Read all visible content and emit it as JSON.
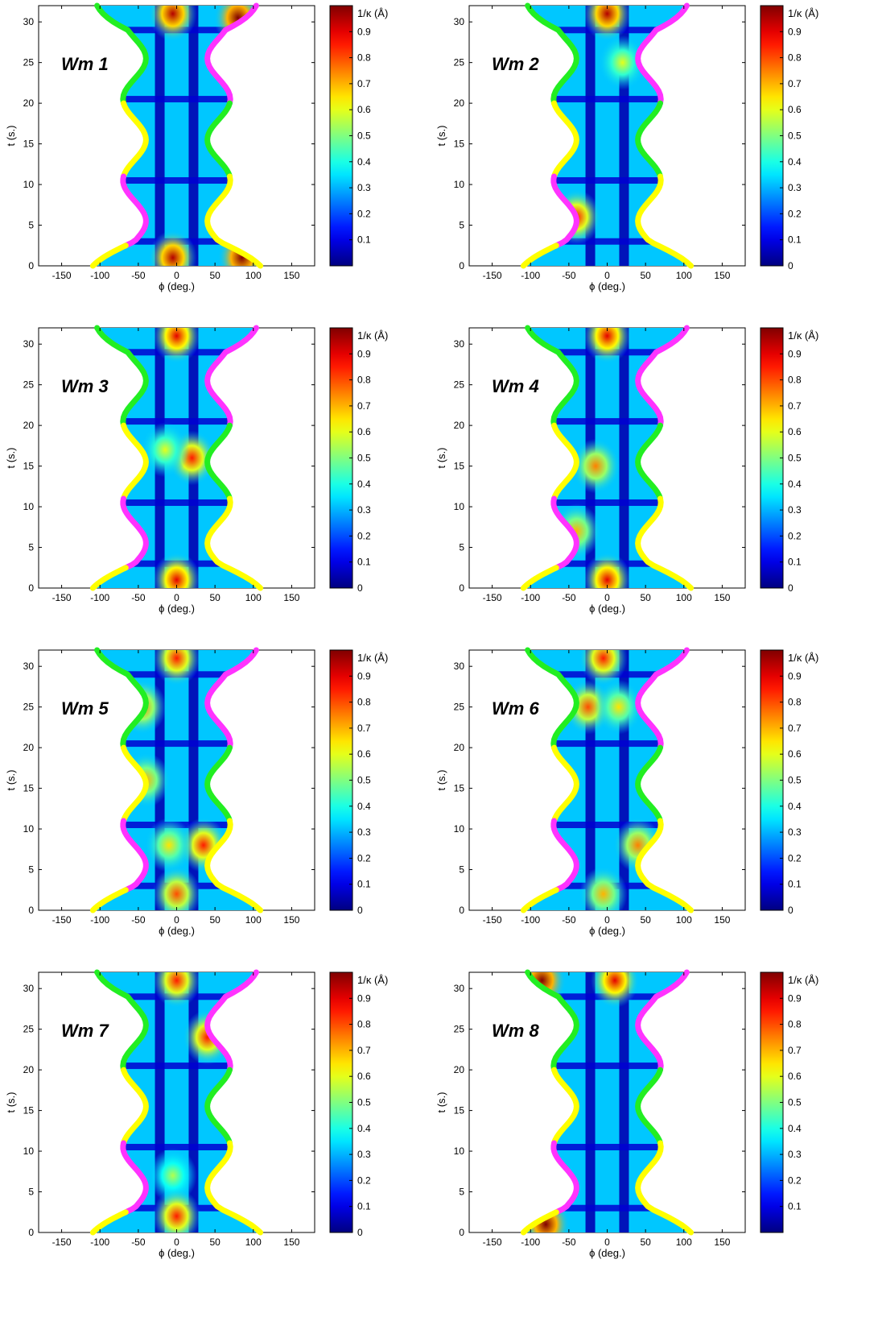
{
  "chart_data": [
    {
      "type": "heatmap",
      "panel_label": "Wm 1",
      "xlabel": "ϕ (deg.)",
      "ylabel": "t (s.)",
      "xlim": [
        -180,
        180
      ],
      "ylim": [
        0,
        32
      ],
      "xticks": [
        "-150",
        "-100",
        "-50",
        "0",
        "50",
        "100",
        "150"
      ],
      "yticks": [
        "0",
        "5",
        "10",
        "15",
        "20",
        "25",
        "30"
      ],
      "colorbar_label": "1/κ (Å)",
      "colorbar_range": [
        0,
        1
      ],
      "colorbar_ticks": [
        "0.1",
        "0.2",
        "0.3",
        "0.4",
        "0.5",
        "0.6",
        "0.7",
        "0.8",
        "0.9"
      ],
      "hotspots": [
        {
          "x": -5,
          "y": 31,
          "v": 0.95
        },
        {
          "x": 80,
          "y": 30.5,
          "v": 1.0
        },
        {
          "x": -5,
          "y": 1,
          "v": 0.95
        },
        {
          "x": 85,
          "y": 1,
          "v": 1.0
        }
      ]
    },
    {
      "type": "heatmap",
      "panel_label": "Wm 2",
      "xlabel": "ϕ (deg.)",
      "ylabel": "t (s.)",
      "xlim": [
        -180,
        180
      ],
      "ylim": [
        0,
        32
      ],
      "xticks": [
        "-150",
        "-100",
        "-50",
        "0",
        "50",
        "100",
        "150"
      ],
      "yticks": [
        "0",
        "5",
        "10",
        "15",
        "20",
        "25",
        "30"
      ],
      "colorbar_label": "1/κ (Å)",
      "colorbar_range": [
        0,
        1
      ],
      "colorbar_ticks": [
        "0",
        "0.1",
        "0.2",
        "0.3",
        "0.4",
        "0.5",
        "0.6",
        "0.7",
        "0.8",
        "0.9"
      ],
      "hotspots": [
        {
          "x": 0,
          "y": 31,
          "v": 0.95
        },
        {
          "x": 20,
          "y": 25,
          "v": 0.6
        },
        {
          "x": -40,
          "y": 6,
          "v": 0.85
        }
      ]
    },
    {
      "type": "heatmap",
      "panel_label": "Wm 3",
      "xlabel": "ϕ (deg.)",
      "ylabel": "t (s.)",
      "xlim": [
        -180,
        180
      ],
      "ylim": [
        0,
        32
      ],
      "xticks": [
        "-150",
        "-100",
        "-50",
        "0",
        "50",
        "100",
        "150"
      ],
      "yticks": [
        "0",
        "5",
        "10",
        "15",
        "20",
        "25",
        "30"
      ],
      "colorbar_label": "1/κ (Å)",
      "colorbar_range": [
        0,
        1
      ],
      "colorbar_ticks": [
        "0",
        "0.1",
        "0.2",
        "0.3",
        "0.4",
        "0.5",
        "0.6",
        "0.7",
        "0.8",
        "0.9"
      ],
      "hotspots": [
        {
          "x": 0,
          "y": 31,
          "v": 0.9
        },
        {
          "x": 20,
          "y": 16,
          "v": 0.85
        },
        {
          "x": -15,
          "y": 17,
          "v": 0.6
        },
        {
          "x": 0,
          "y": 1,
          "v": 0.9
        }
      ]
    },
    {
      "type": "heatmap",
      "panel_label": "Wm 4",
      "xlabel": "ϕ (deg.)",
      "ylabel": "t (s.)",
      "xlim": [
        -180,
        180
      ],
      "ylim": [
        0,
        32
      ],
      "xticks": [
        "-150",
        "-100",
        "-50",
        "0",
        "50",
        "100",
        "150"
      ],
      "yticks": [
        "0",
        "5",
        "10",
        "15",
        "20",
        "25",
        "30"
      ],
      "colorbar_label": "1/κ (Å)",
      "colorbar_range": [
        0,
        1
      ],
      "colorbar_ticks": [
        "0",
        "0.1",
        "0.2",
        "0.3",
        "0.4",
        "0.5",
        "0.6",
        "0.7",
        "0.8",
        "0.9"
      ],
      "hotspots": [
        {
          "x": -15,
          "y": 15,
          "v": 0.75
        },
        {
          "x": 0,
          "y": 31,
          "v": 0.9
        },
        {
          "x": 0,
          "y": 1,
          "v": 0.9
        },
        {
          "x": -40,
          "y": 7,
          "v": 0.7
        }
      ]
    },
    {
      "type": "heatmap",
      "panel_label": "Wm 5",
      "xlabel": "ϕ (deg.)",
      "ylabel": "t (s.)",
      "xlim": [
        -180,
        180
      ],
      "ylim": [
        0,
        32
      ],
      "xticks": [
        "-150",
        "-100",
        "-50",
        "0",
        "50",
        "100",
        "150"
      ],
      "yticks": [
        "0",
        "5",
        "10",
        "15",
        "20",
        "25",
        "30"
      ],
      "colorbar_label": "1/κ (Å)",
      "colorbar_range": [
        0,
        1
      ],
      "colorbar_ticks": [
        "0",
        "0.1",
        "0.2",
        "0.3",
        "0.4",
        "0.5",
        "0.6",
        "0.7",
        "0.8",
        "0.9"
      ],
      "hotspots": [
        {
          "x": 35,
          "y": 8,
          "v": 0.85
        },
        {
          "x": -10,
          "y": 8,
          "v": 0.65
        },
        {
          "x": -40,
          "y": 16,
          "v": 0.7
        },
        {
          "x": 0,
          "y": 31,
          "v": 0.85
        },
        {
          "x": 0,
          "y": 2,
          "v": 0.8
        },
        {
          "x": -45,
          "y": 25,
          "v": 0.75
        }
      ]
    },
    {
      "type": "heatmap",
      "panel_label": "Wm 6",
      "xlabel": "ϕ (deg.)",
      "ylabel": "t (s.)",
      "xlim": [
        -180,
        180
      ],
      "ylim": [
        0,
        32
      ],
      "xticks": [
        "-150",
        "-100",
        "-50",
        "0",
        "50",
        "100",
        "150"
      ],
      "yticks": [
        "0",
        "5",
        "10",
        "15",
        "20",
        "25",
        "30"
      ],
      "colorbar_label": "1/κ (Å)",
      "colorbar_range": [
        0,
        1
      ],
      "colorbar_ticks": [
        "0",
        "0.1",
        "0.2",
        "0.3",
        "0.4",
        "0.5",
        "0.6",
        "0.7",
        "0.8",
        "0.9"
      ],
      "hotspots": [
        {
          "x": -25,
          "y": 25,
          "v": 0.8
        },
        {
          "x": 15,
          "y": 25,
          "v": 0.65
        },
        {
          "x": -5,
          "y": 31,
          "v": 0.85
        },
        {
          "x": 40,
          "y": 8,
          "v": 0.75
        },
        {
          "x": -5,
          "y": 2,
          "v": 0.7
        }
      ]
    },
    {
      "type": "heatmap",
      "panel_label": "Wm 7",
      "xlabel": "ϕ (deg.)",
      "ylabel": "t (s.)",
      "xlim": [
        -180,
        180
      ],
      "ylim": [
        0,
        32
      ],
      "xticks": [
        "-150",
        "-100",
        "-50",
        "0",
        "50",
        "100",
        "150"
      ],
      "yticks": [
        "0",
        "5",
        "10",
        "15",
        "20",
        "25",
        "30"
      ],
      "colorbar_label": "1/κ (Å)",
      "colorbar_range": [
        0,
        1
      ],
      "colorbar_ticks": [
        "0",
        "0.1",
        "0.2",
        "0.3",
        "0.4",
        "0.5",
        "0.6",
        "0.7",
        "0.8",
        "0.9"
      ],
      "hotspots": [
        {
          "x": 40,
          "y": 24,
          "v": 0.85
        },
        {
          "x": -5,
          "y": 7,
          "v": 0.55
        },
        {
          "x": 0,
          "y": 31,
          "v": 0.85
        },
        {
          "x": 0,
          "y": 2,
          "v": 0.85
        }
      ]
    },
    {
      "type": "heatmap",
      "panel_label": "Wm 8",
      "xlabel": "ϕ (deg.)",
      "ylabel": "t (s.)",
      "xlim": [
        -180,
        180
      ],
      "ylim": [
        0,
        32
      ],
      "xticks": [
        "-150",
        "-100",
        "-50",
        "0",
        "50",
        "100",
        "150"
      ],
      "yticks": [
        "0",
        "5",
        "10",
        "15",
        "20",
        "25",
        "30"
      ],
      "colorbar_label": "1/κ (Å)",
      "colorbar_range": [
        0,
        1
      ],
      "colorbar_ticks": [
        "0.1",
        "0.2",
        "0.3",
        "0.4",
        "0.5",
        "0.6",
        "0.7",
        "0.8",
        "0.9"
      ],
      "hotspots": [
        {
          "x": -85,
          "y": 31,
          "v": 1.0
        },
        {
          "x": -80,
          "y": 1,
          "v": 1.0
        },
        {
          "x": 10,
          "y": 31,
          "v": 0.9
        }
      ]
    }
  ],
  "boundary_curves": {
    "colors": {
      "magenta": "#ff33ff",
      "green": "#22ee22",
      "yellow": "#ffff00"
    },
    "left_side": [
      {
        "color": "green",
        "t_range": [
          20,
          32
        ]
      },
      {
        "color": "yellow",
        "t_range": [
          11,
          20
        ]
      },
      {
        "color": "magenta",
        "t_range": [
          2.5,
          11
        ]
      },
      {
        "color": "yellow",
        "t_range": [
          0,
          2.5
        ]
      }
    ],
    "right_side": [
      {
        "color": "magenta",
        "t_range": [
          20,
          32
        ]
      },
      {
        "color": "green",
        "t_range": [
          11,
          20
        ]
      },
      {
        "color": "yellow",
        "t_range": [
          0,
          11
        ]
      }
    ]
  }
}
